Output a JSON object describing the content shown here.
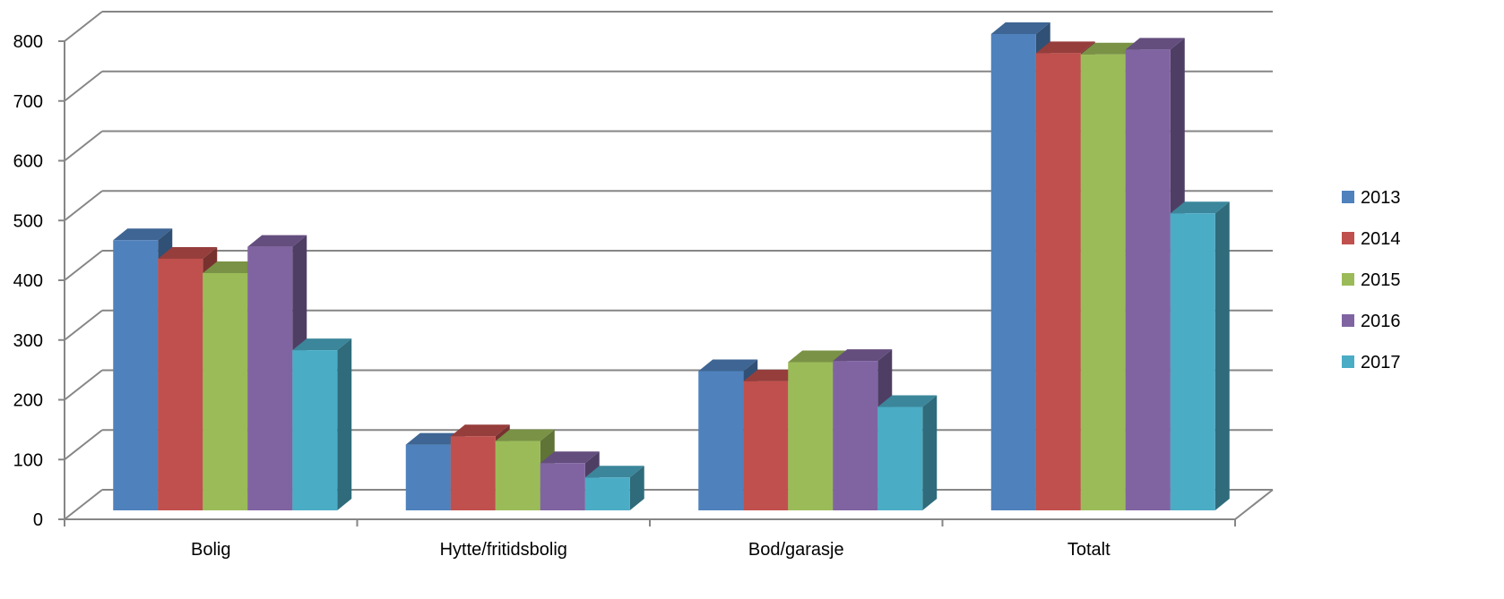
{
  "chart_data": {
    "type": "bar",
    "title": "",
    "xlabel": "",
    "ylabel": "",
    "ylim": [
      0,
      800
    ],
    "yticks": [
      0,
      100,
      200,
      300,
      400,
      500,
      600,
      700,
      800
    ],
    "grid": true,
    "legend_position": "right",
    "categories": [
      "Bolig",
      "Hytte/fritidsbolig",
      "Bod/garasje",
      "Totalt"
    ],
    "series": [
      {
        "name": "2013",
        "color": "#4F81BD",
        "values": [
          452,
          110,
          233,
          797
        ]
      },
      {
        "name": "2014",
        "color": "#C0504D",
        "values": [
          421,
          124,
          216,
          765
        ]
      },
      {
        "name": "2015",
        "color": "#9BBB59",
        "values": [
          397,
          116,
          248,
          763
        ]
      },
      {
        "name": "2016",
        "color": "#8064A2",
        "values": [
          441,
          79,
          250,
          771
        ]
      },
      {
        "name": "2017",
        "color": "#4BACC6",
        "values": [
          268,
          55,
          173,
          497
        ]
      }
    ]
  }
}
